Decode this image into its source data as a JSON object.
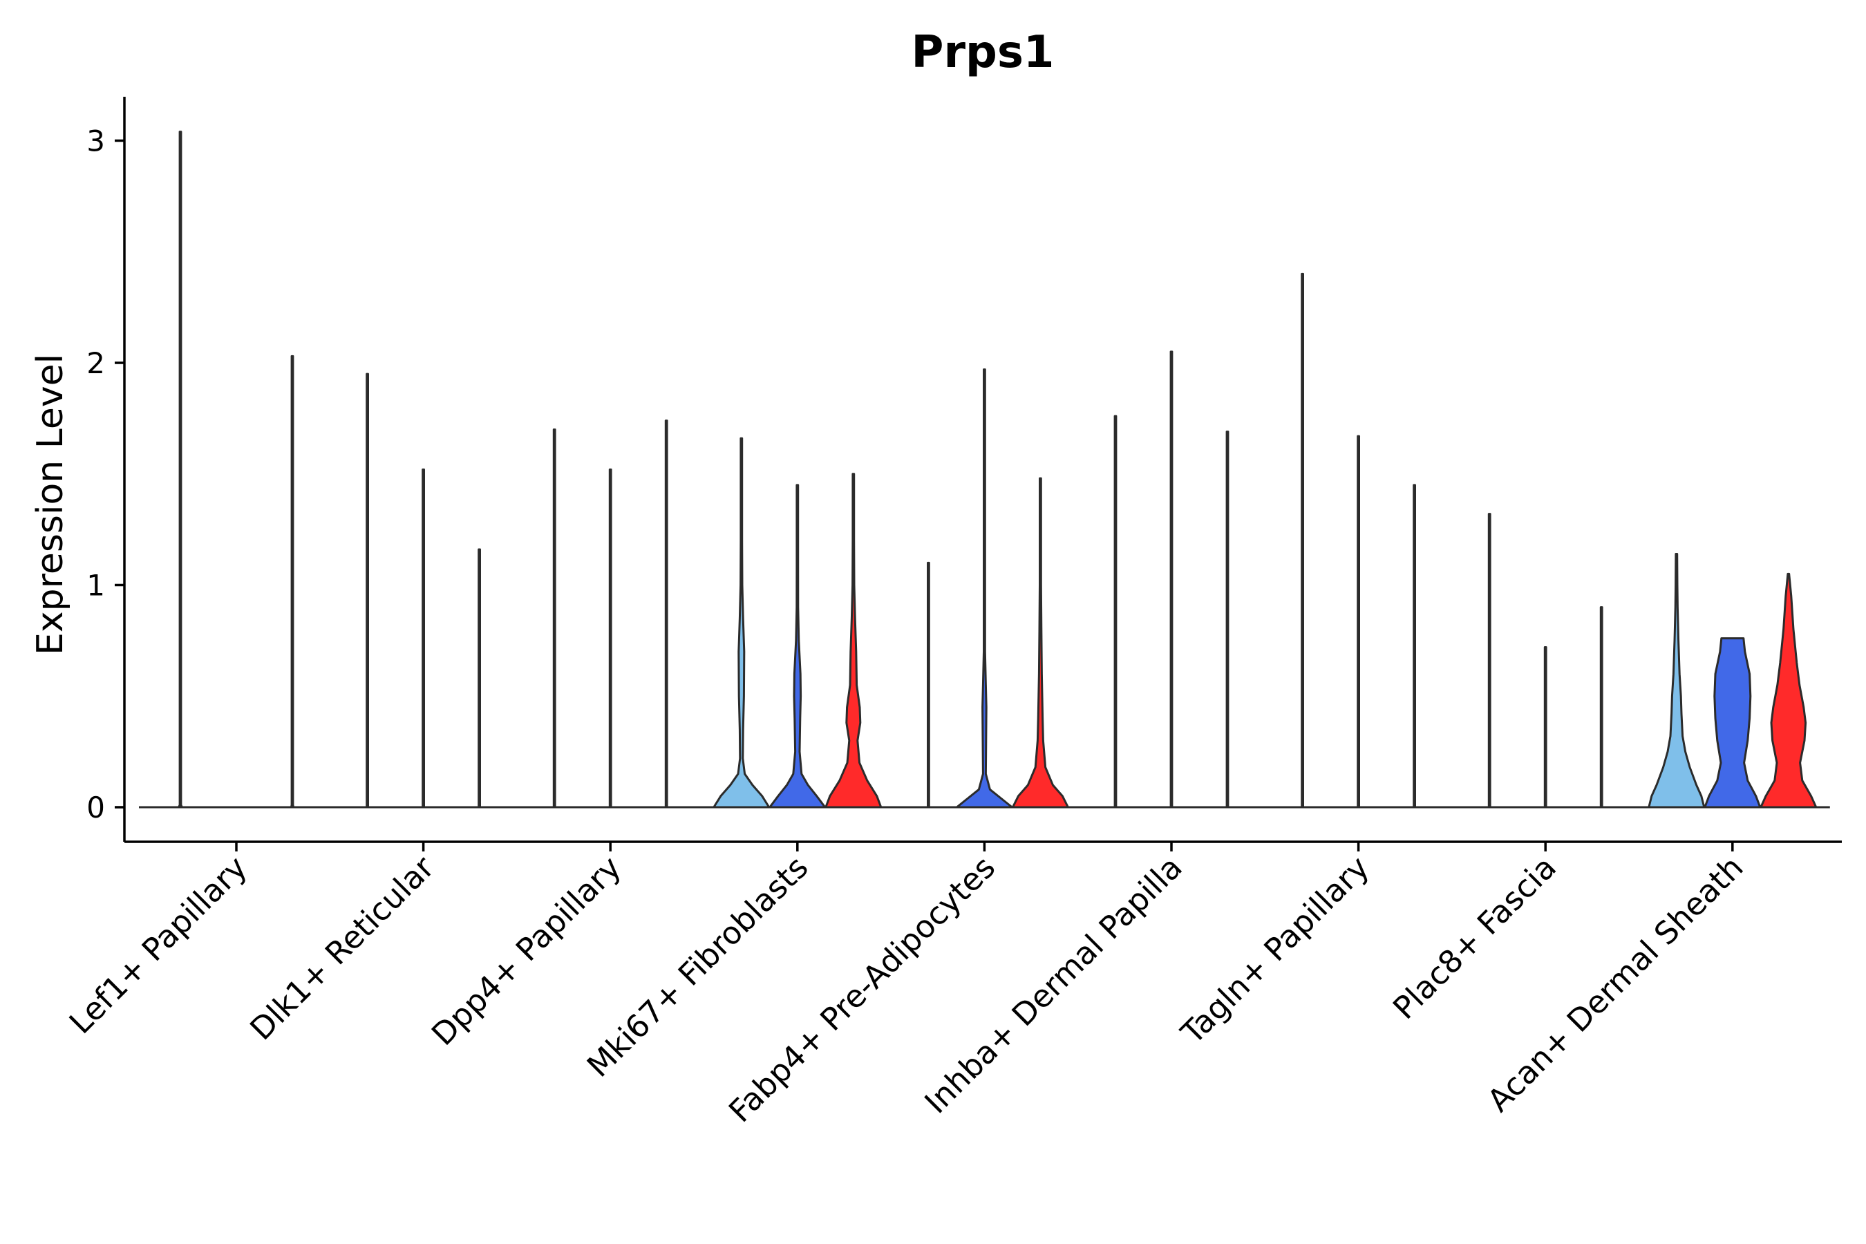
{
  "chart_data": {
    "type": "violin",
    "title": "Prps1",
    "xlabel": "",
    "ylabel": "Expression Level",
    "ylim": [
      -0.15,
      3.2
    ],
    "yticks": [
      0,
      1,
      2,
      3
    ],
    "legend": "none",
    "series_colors": [
      "#7fbfea",
      "#4169e8",
      "#ff2a2a"
    ],
    "categories": [
      "Lef1+ Papillary",
      "Dlk1+ Reticular",
      "Dpp4+ Papillary",
      "Mki67+ Fibroblasts",
      "Fabp4+ Pre-Adipocytes",
      "Inhba+ Dermal Papilla",
      "Tagln+ Papillary",
      "Plac8+ Fascia",
      "Acan+ Dermal Sheath"
    ],
    "violins": [
      {
        "category": "Lef1+ Papillary",
        "group": 0,
        "max": 3.04,
        "profile": [
          [
            0,
            0.06
          ],
          [
            0.01,
            0.003
          ],
          [
            0.05,
            0.001
          ]
        ]
      },
      {
        "category": "Lef1+ Papillary",
        "group": 1,
        "max": 0.0,
        "profile": [
          [
            0,
            0.02
          ]
        ]
      },
      {
        "category": "Lef1+ Papillary",
        "group": 2,
        "max": 2.03,
        "profile": [
          [
            0,
            0.04
          ],
          [
            0.01,
            0.003
          ],
          [
            0.05,
            0.001
          ]
        ]
      },
      {
        "category": "Dlk1+ Reticular",
        "group": 0,
        "max": 1.95,
        "profile": [
          [
            0,
            0.02
          ],
          [
            0.01,
            0.003
          ],
          [
            0.05,
            0.001
          ]
        ]
      },
      {
        "category": "Dlk1+ Reticular",
        "group": 1,
        "max": 1.52,
        "profile": [
          [
            0,
            0.02
          ],
          [
            0.01,
            0.003
          ],
          [
            0.05,
            0.001
          ]
        ]
      },
      {
        "category": "Dlk1+ Reticular",
        "group": 2,
        "max": 1.16,
        "profile": [
          [
            0,
            0.02
          ],
          [
            0.01,
            0.003
          ],
          [
            0.05,
            0.001
          ]
        ]
      },
      {
        "category": "Dpp4+ Papillary",
        "group": 0,
        "max": 1.7,
        "profile": [
          [
            0,
            0.02
          ],
          [
            0.01,
            0.003
          ],
          [
            0.05,
            0.001
          ]
        ]
      },
      {
        "category": "Dpp4+ Papillary",
        "group": 1,
        "max": 1.52,
        "profile": [
          [
            0,
            0.02
          ],
          [
            0.01,
            0.003
          ],
          [
            0.05,
            0.001
          ]
        ]
      },
      {
        "category": "Dpp4+ Papillary",
        "group": 2,
        "max": 1.74,
        "profile": [
          [
            0,
            0.02
          ],
          [
            0.01,
            0.003
          ],
          [
            0.05,
            0.001
          ]
        ]
      },
      {
        "category": "Mki67+ Fibroblasts",
        "group": 0,
        "max": 1.66,
        "profile": [
          [
            0,
            1.0
          ],
          [
            0.05,
            0.75
          ],
          [
            0.1,
            0.4
          ],
          [
            0.15,
            0.12
          ],
          [
            0.22,
            0.05
          ],
          [
            0.35,
            0.06
          ],
          [
            0.5,
            0.09
          ],
          [
            0.7,
            0.1
          ],
          [
            0.85,
            0.06
          ],
          [
            1.0,
            0.03
          ],
          [
            1.2,
            0.015
          ],
          [
            1.4,
            0.008
          ],
          [
            1.66,
            0.002
          ]
        ]
      },
      {
        "category": "Mki67+ Fibroblasts",
        "group": 1,
        "max": 1.45,
        "profile": [
          [
            0,
            1.0
          ],
          [
            0.05,
            0.7
          ],
          [
            0.1,
            0.38
          ],
          [
            0.15,
            0.15
          ],
          [
            0.25,
            0.08
          ],
          [
            0.4,
            0.1
          ],
          [
            0.5,
            0.12
          ],
          [
            0.6,
            0.11
          ],
          [
            0.75,
            0.05
          ],
          [
            0.9,
            0.025
          ],
          [
            1.1,
            0.012
          ],
          [
            1.3,
            0.006
          ],
          [
            1.45,
            0.002
          ]
        ]
      },
      {
        "category": "Mki67+ Fibroblasts",
        "group": 2,
        "max": 1.5,
        "profile": [
          [
            0,
            1.0
          ],
          [
            0.05,
            0.85
          ],
          [
            0.12,
            0.5
          ],
          [
            0.2,
            0.22
          ],
          [
            0.3,
            0.15
          ],
          [
            0.38,
            0.25
          ],
          [
            0.45,
            0.23
          ],
          [
            0.55,
            0.12
          ],
          [
            0.7,
            0.1
          ],
          [
            0.85,
            0.06
          ],
          [
            1.0,
            0.03
          ],
          [
            1.2,
            0.015
          ],
          [
            1.5,
            0.003
          ]
        ]
      },
      {
        "category": "Fabp4+ Pre-Adipocytes",
        "group": 0,
        "max": 1.1,
        "profile": [
          [
            0,
            0.02
          ],
          [
            0.01,
            0.003
          ],
          [
            0.05,
            0.001
          ]
        ]
      },
      {
        "category": "Fabp4+ Pre-Adipocytes",
        "group": 1,
        "max": 1.97,
        "profile": [
          [
            0,
            1.0
          ],
          [
            0.04,
            0.6
          ],
          [
            0.08,
            0.2
          ],
          [
            0.15,
            0.05
          ],
          [
            0.3,
            0.06
          ],
          [
            0.45,
            0.07
          ],
          [
            0.55,
            0.05
          ],
          [
            0.7,
            0.02
          ],
          [
            1.0,
            0.01
          ],
          [
            1.5,
            0.005
          ],
          [
            1.97,
            0.002
          ]
        ]
      },
      {
        "category": "Fabp4+ Pre-Adipocytes",
        "group": 2,
        "max": 1.48,
        "profile": [
          [
            0,
            1.0
          ],
          [
            0.05,
            0.8
          ],
          [
            0.1,
            0.45
          ],
          [
            0.18,
            0.18
          ],
          [
            0.3,
            0.1
          ],
          [
            0.4,
            0.08
          ],
          [
            0.6,
            0.05
          ],
          [
            0.8,
            0.035
          ],
          [
            1.0,
            0.02
          ],
          [
            1.2,
            0.01
          ],
          [
            1.48,
            0.002
          ]
        ]
      },
      {
        "category": "Inhba+ Dermal Papilla",
        "group": 0,
        "max": 1.76,
        "profile": [
          [
            0,
            0.02
          ],
          [
            0.01,
            0.003
          ],
          [
            0.05,
            0.001
          ]
        ]
      },
      {
        "category": "Inhba+ Dermal Papilla",
        "group": 1,
        "max": 2.05,
        "profile": [
          [
            0,
            0.02
          ],
          [
            0.01,
            0.003
          ],
          [
            0.05,
            0.001
          ]
        ]
      },
      {
        "category": "Inhba+ Dermal Papilla",
        "group": 2,
        "max": 1.69,
        "profile": [
          [
            0,
            0.02
          ],
          [
            0.01,
            0.003
          ],
          [
            0.05,
            0.001
          ]
        ]
      },
      {
        "category": "Tagln+ Papillary",
        "group": 0,
        "max": 2.4,
        "profile": [
          [
            0,
            0.02
          ],
          [
            0.01,
            0.003
          ],
          [
            0.05,
            0.001
          ]
        ]
      },
      {
        "category": "Tagln+ Papillary",
        "group": 1,
        "max": 1.67,
        "profile": [
          [
            0,
            0.02
          ],
          [
            0.01,
            0.003
          ],
          [
            0.05,
            0.001
          ]
        ]
      },
      {
        "category": "Tagln+ Papillary",
        "group": 2,
        "max": 1.45,
        "profile": [
          [
            0,
            0.02
          ],
          [
            0.01,
            0.003
          ],
          [
            0.05,
            0.001
          ]
        ]
      },
      {
        "category": "Plac8+ Fascia",
        "group": 0,
        "max": 1.32,
        "profile": [
          [
            0,
            0.02
          ],
          [
            0.01,
            0.003
          ],
          [
            0.05,
            0.001
          ]
        ]
      },
      {
        "category": "Plac8+ Fascia",
        "group": 1,
        "max": 0.72,
        "profile": [
          [
            0,
            0.02
          ],
          [
            0.01,
            0.003
          ],
          [
            0.05,
            0.001
          ]
        ]
      },
      {
        "category": "Plac8+ Fascia",
        "group": 2,
        "max": 0.9,
        "profile": [
          [
            0,
            0.02
          ],
          [
            0.01,
            0.003
          ],
          [
            0.05,
            0.001
          ]
        ]
      },
      {
        "category": "Acan+ Dermal Sheath",
        "group": 0,
        "max": 1.14,
        "profile": [
          [
            0,
            1.0
          ],
          [
            0.05,
            0.9
          ],
          [
            0.1,
            0.72
          ],
          [
            0.18,
            0.48
          ],
          [
            0.25,
            0.32
          ],
          [
            0.32,
            0.22
          ],
          [
            0.42,
            0.18
          ],
          [
            0.5,
            0.16
          ],
          [
            0.6,
            0.11
          ],
          [
            0.75,
            0.07
          ],
          [
            0.9,
            0.04
          ],
          [
            1.0,
            0.03
          ],
          [
            1.14,
            0.006
          ]
        ]
      },
      {
        "category": "Acan+ Dermal Sheath",
        "group": 1,
        "max": 0.76,
        "profile": [
          [
            0,
            1.0
          ],
          [
            0.05,
            0.85
          ],
          [
            0.12,
            0.55
          ],
          [
            0.2,
            0.42
          ],
          [
            0.3,
            0.55
          ],
          [
            0.4,
            0.62
          ],
          [
            0.5,
            0.65
          ],
          [
            0.6,
            0.62
          ],
          [
            0.7,
            0.45
          ],
          [
            0.76,
            0.4
          ]
        ]
      },
      {
        "category": "Acan+ Dermal Sheath",
        "group": 2,
        "max": 1.05,
        "profile": [
          [
            0,
            1.0
          ],
          [
            0.05,
            0.82
          ],
          [
            0.12,
            0.5
          ],
          [
            0.2,
            0.42
          ],
          [
            0.3,
            0.58
          ],
          [
            0.38,
            0.62
          ],
          [
            0.45,
            0.55
          ],
          [
            0.55,
            0.4
          ],
          [
            0.65,
            0.3
          ],
          [
            0.8,
            0.18
          ],
          [
            0.95,
            0.1
          ],
          [
            1.05,
            0.02
          ]
        ]
      }
    ]
  }
}
